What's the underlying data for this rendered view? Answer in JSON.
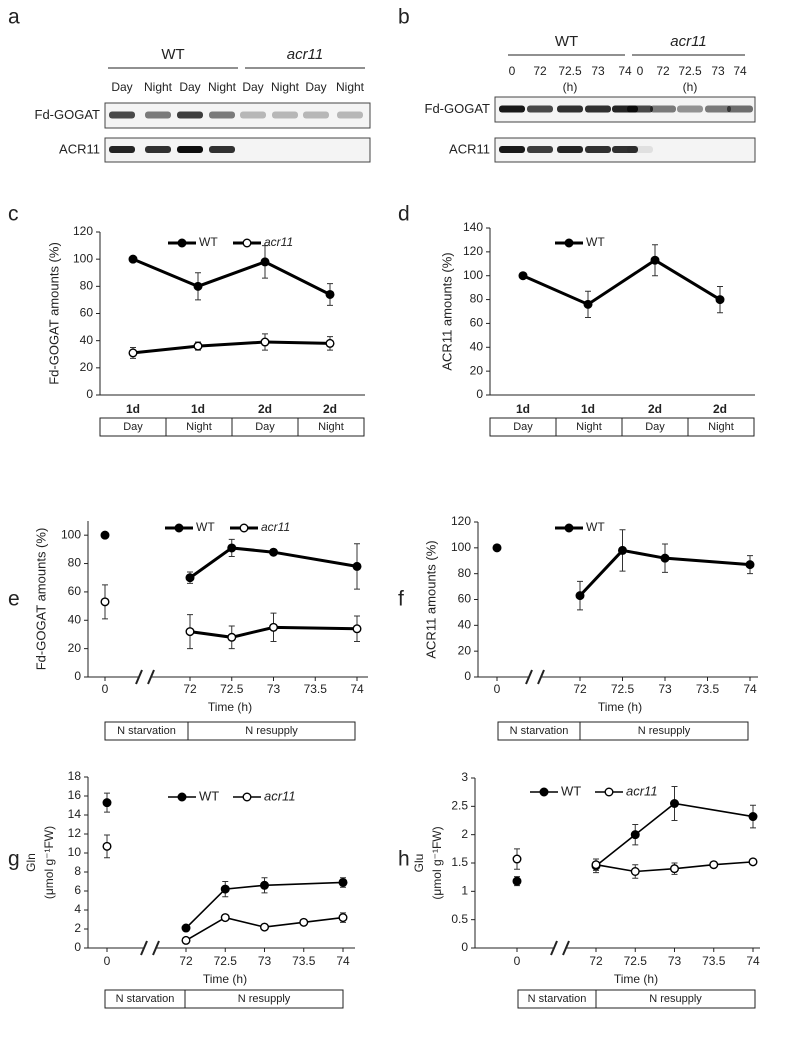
{
  "blots": [
    {
      "label": "a",
      "groups": [
        {
          "name": "WT",
          "lanes": [
            "Day",
            "Night",
            "Day",
            "Night"
          ]
        },
        {
          "name": "acr11",
          "lanes": [
            "Day",
            "Night",
            "Day",
            "Night"
          ]
        }
      ],
      "rows": [
        "Fd-GOGAT",
        "ACR11"
      ]
    },
    {
      "label": "b",
      "groups": [
        {
          "name": "WT",
          "lanes": [
            "0",
            "72",
            "72.5",
            "73",
            "74"
          ],
          "unit": "(h)"
        },
        {
          "name": "acr11",
          "lanes": [
            "0",
            "72",
            "72.5",
            "73",
            "74"
          ],
          "unit": "(h)"
        }
      ],
      "rows": [
        "Fd-GOGAT",
        "ACR11"
      ]
    }
  ],
  "chart_data": [
    {
      "type": "line",
      "label": "c",
      "ylabel": "Fd-GOGAT amounts (%)",
      "categories": [
        "1d",
        "1d",
        "2d",
        "2d"
      ],
      "phases": [
        "Day",
        "Night",
        "Day",
        "Night"
      ],
      "ylim": [
        0,
        120
      ],
      "yticks": [
        0,
        20,
        40,
        60,
        80,
        100,
        120
      ],
      "series": [
        {
          "name": "WT",
          "color": "#000",
          "marker": "filled",
          "values": [
            100,
            80,
            98,
            74
          ],
          "errors": [
            null,
            10,
            12,
            8
          ]
        },
        {
          "name": "acr11",
          "color": "#000",
          "marker": "open",
          "values": [
            31,
            36,
            39,
            38
          ],
          "errors": [
            4,
            3,
            6,
            5
          ]
        }
      ]
    },
    {
      "type": "line",
      "label": "d",
      "ylabel": "ACR11 amounts (%)",
      "categories": [
        "1d",
        "1d",
        "2d",
        "2d"
      ],
      "phases": [
        "Day",
        "Night",
        "Day",
        "Night"
      ],
      "ylim": [
        0,
        140
      ],
      "yticks": [
        0,
        20,
        40,
        60,
        80,
        100,
        120,
        140
      ],
      "series": [
        {
          "name": "WT",
          "color": "#000",
          "marker": "filled",
          "values": [
            100,
            76,
            113,
            80
          ],
          "errors": [
            null,
            11,
            13,
            11
          ]
        }
      ]
    },
    {
      "type": "line",
      "label": "e",
      "ylabel": "Fd-GOGAT amounts (%)",
      "xlabel": "Time (h)",
      "x": [
        0,
        72,
        72.5,
        73,
        74
      ],
      "xlim": [
        0,
        74
      ],
      "xticks": [
        0,
        72,
        72.5,
        73,
        73.5,
        74
      ],
      "x_break": true,
      "phases": [
        "N starvation",
        "N resupply"
      ],
      "ylim": [
        0,
        110
      ],
      "yticks": [
        0,
        20,
        40,
        60,
        80,
        100
      ],
      "series": [
        {
          "name": "WT",
          "color": "#000",
          "marker": "filled",
          "values": [
            100,
            70,
            91,
            88,
            78
          ],
          "errors": [
            null,
            4,
            6,
            null,
            16
          ]
        },
        {
          "name": "acr11",
          "color": "#000",
          "marker": "open",
          "values": [
            53,
            32,
            28,
            35,
            34
          ],
          "errors": [
            12,
            12,
            8,
            10,
            9
          ]
        }
      ]
    },
    {
      "type": "line",
      "label": "f",
      "ylabel": "ACR11 amounts (%)",
      "xlabel": "Time (h)",
      "x": [
        0,
        72,
        72.5,
        73,
        74
      ],
      "xlim": [
        0,
        74
      ],
      "xticks": [
        0,
        72,
        72.5,
        73,
        73.5,
        74
      ],
      "x_break": true,
      "phases": [
        "N starvation",
        "N resupply"
      ],
      "ylim": [
        0,
        120
      ],
      "yticks": [
        0,
        20,
        40,
        60,
        80,
        100,
        120
      ],
      "series": [
        {
          "name": "WT",
          "color": "#000",
          "marker": "filled",
          "values": [
            100,
            63,
            98,
            92,
            87
          ],
          "errors": [
            null,
            11,
            16,
            11,
            7
          ]
        }
      ]
    },
    {
      "type": "line",
      "label": "g",
      "ylabel": [
        "Gln",
        "(μmol g⁻¹FW)"
      ],
      "xlabel": "Time (h)",
      "xlim": [
        0,
        74
      ],
      "xticks": [
        0,
        72,
        72.5,
        73,
        73.5,
        74
      ],
      "x_break": true,
      "phases": [
        "N starvation",
        "N resupply"
      ],
      "ylim": [
        0,
        18
      ],
      "yticks": [
        0,
        2,
        4,
        6,
        8,
        10,
        12,
        14,
        16,
        18
      ],
      "series": [
        {
          "name": "WT",
          "color": "#000",
          "marker": "filled",
          "x": [
            0,
            72,
            72.5,
            73,
            74
          ],
          "values": [
            15.3,
            2.1,
            6.2,
            6.6,
            6.9
          ],
          "errors": [
            1,
            null,
            0.8,
            0.8,
            0.5
          ]
        },
        {
          "name": "acr11",
          "color": "#000",
          "marker": "open",
          "x": [
            0,
            72,
            72.5,
            73,
            73.5,
            74
          ],
          "values": [
            10.7,
            0.8,
            3.2,
            2.2,
            2.7,
            3.2
          ],
          "errors": [
            1.2,
            null,
            0.2,
            0.2,
            null,
            0.5
          ]
        }
      ]
    },
    {
      "type": "line",
      "label": "h",
      "ylabel": [
        "Glu",
        "(μmol g⁻¹FW)"
      ],
      "xlabel": "Time (h)",
      "xlim": [
        0,
        74
      ],
      "xticks": [
        0,
        72,
        72.5,
        73,
        73.5,
        74
      ],
      "x_break": true,
      "phases": [
        "N starvation",
        "N resupply"
      ],
      "ylim": [
        0,
        3
      ],
      "yticks": [
        0,
        0.5,
        1,
        1.5,
        2,
        2.5,
        3
      ],
      "series": [
        {
          "name": "WT",
          "color": "#000",
          "marker": "filled",
          "x": [
            0,
            72,
            72.5,
            73,
            74
          ],
          "values": [
            1.18,
            1.45,
            2.0,
            2.55,
            2.32
          ],
          "errors": [
            0.08,
            0.12,
            0.18,
            0.3,
            0.2
          ]
        },
        {
          "name": "acr11",
          "color": "#000",
          "marker": "open",
          "x": [
            0,
            72,
            72.5,
            73,
            73.5,
            74
          ],
          "values": [
            1.57,
            1.47,
            1.35,
            1.4,
            1.47,
            1.52
          ],
          "errors": [
            0.18,
            0.1,
            0.12,
            0.1,
            null,
            null
          ]
        }
      ]
    }
  ]
}
